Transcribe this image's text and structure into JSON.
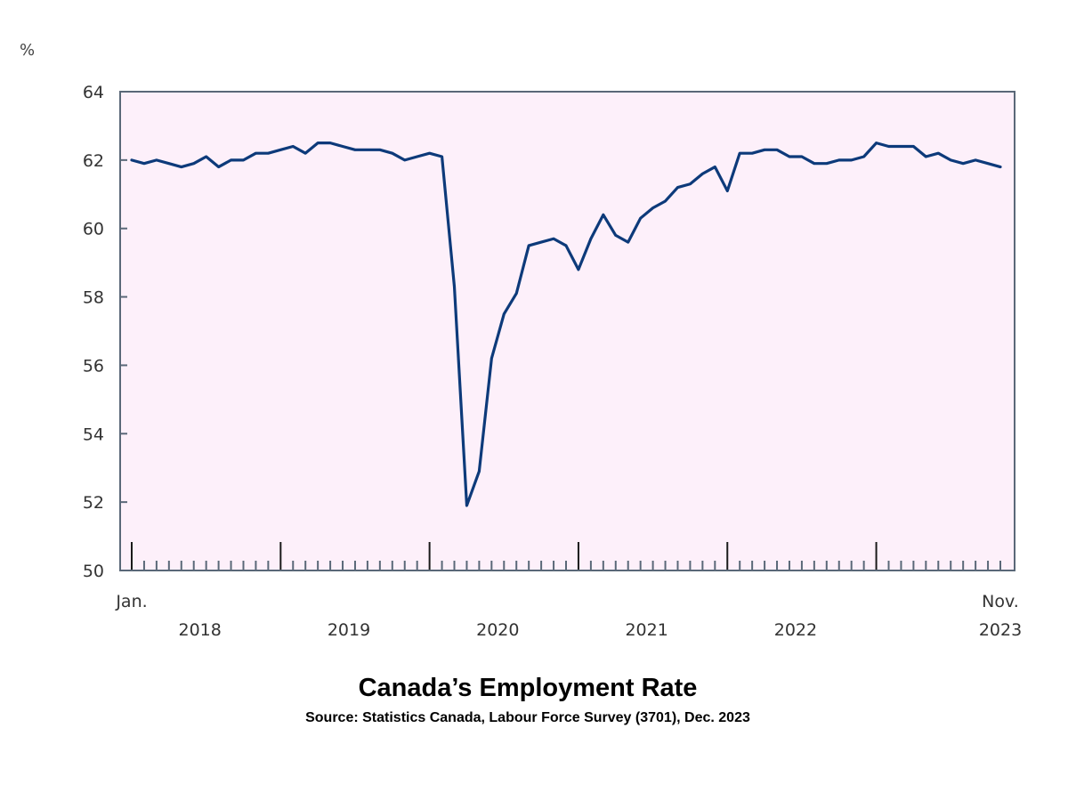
{
  "chart_data": {
    "type": "line",
    "title": "Canada’s Employment Rate",
    "source": "Source: Statistics Canada, Labour Force Survey (3701), Dec. 2023",
    "y_unit": "%",
    "ylim": [
      50,
      64
    ],
    "y_ticks": [
      "50",
      "52",
      "54",
      "56",
      "58",
      "60",
      "62",
      "64"
    ],
    "x_start_label": "Jan.",
    "x_end_label": "Nov.",
    "year_labels": [
      "2018",
      "2019",
      "2020",
      "2021",
      "2022",
      "2023"
    ],
    "x_range": [
      "2018-01",
      "2023-11"
    ],
    "grid": false,
    "legend": "none",
    "colors": {
      "line": "#0d3a7a",
      "plot_background": "#fdf0fa",
      "frame": "#5a6878"
    },
    "series": [
      {
        "x": [
          "2018-01",
          "2018-02",
          "2018-03",
          "2018-04",
          "2018-05",
          "2018-06",
          "2018-07",
          "2018-08",
          "2018-09",
          "2018-10",
          "2018-11",
          "2018-12",
          "2019-01",
          "2019-02",
          "2019-03",
          "2019-04",
          "2019-05",
          "2019-06",
          "2019-07",
          "2019-08",
          "2019-09",
          "2019-10",
          "2019-11",
          "2019-12",
          "2020-01",
          "2020-02",
          "2020-03",
          "2020-04",
          "2020-05",
          "2020-06",
          "2020-07",
          "2020-08",
          "2020-09",
          "2020-10",
          "2020-11",
          "2020-12",
          "2021-01",
          "2021-02",
          "2021-03",
          "2021-04",
          "2021-05",
          "2021-06",
          "2021-07",
          "2021-08",
          "2021-09",
          "2021-10",
          "2021-11",
          "2021-12",
          "2022-01",
          "2022-02",
          "2022-03",
          "2022-04",
          "2022-05",
          "2022-06",
          "2022-07",
          "2022-08",
          "2022-09",
          "2022-10",
          "2022-11",
          "2022-12",
          "2023-01",
          "2023-02",
          "2023-03",
          "2023-04",
          "2023-05",
          "2023-06",
          "2023-07",
          "2023-08",
          "2023-09",
          "2023-10",
          "2023-11"
        ],
        "values": [
          62.0,
          61.9,
          62.0,
          61.9,
          61.8,
          61.9,
          62.1,
          61.8,
          62.0,
          62.0,
          62.2,
          62.2,
          62.3,
          62.4,
          62.2,
          62.5,
          62.5,
          62.4,
          62.3,
          62.3,
          62.3,
          62.2,
          62.0,
          62.1,
          62.2,
          62.1,
          58.3,
          51.9,
          52.9,
          56.2,
          57.5,
          58.1,
          59.5,
          59.6,
          59.7,
          59.5,
          58.8,
          59.7,
          60.4,
          59.8,
          59.6,
          60.3,
          60.6,
          60.8,
          61.2,
          61.3,
          61.6,
          61.8,
          61.1,
          62.2,
          62.2,
          62.3,
          62.3,
          62.1,
          62.1,
          61.9,
          61.9,
          62.0,
          62.0,
          62.1,
          62.5,
          62.4,
          62.4,
          62.4,
          62.1,
          62.2,
          62.0,
          61.9,
          62.0,
          61.9,
          61.8
        ]
      }
    ]
  }
}
